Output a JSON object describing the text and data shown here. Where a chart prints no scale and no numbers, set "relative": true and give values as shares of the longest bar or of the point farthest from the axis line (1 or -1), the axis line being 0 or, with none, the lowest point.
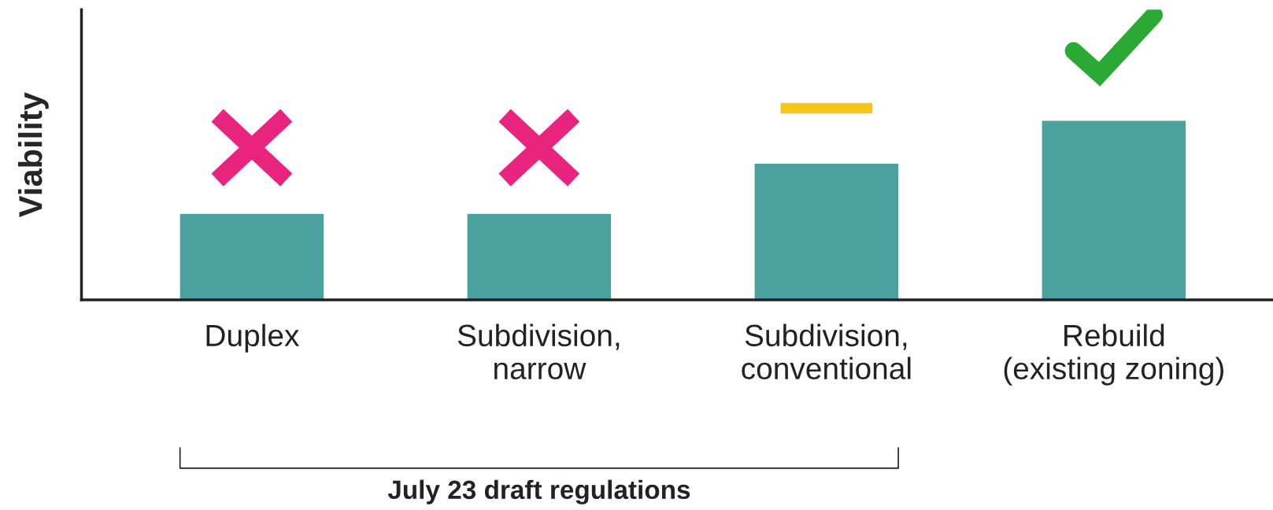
{
  "chart_data": {
    "type": "bar",
    "relative": true,
    "ylabel": "Viability",
    "categories": [
      "Duplex",
      "Subdivision,\nnarrow",
      "Subdivision,\nconventional",
      "Rebuild\n(existing zoning)"
    ],
    "values": [
      0.48,
      0.48,
      0.76,
      1
    ],
    "color": "#4aa19d",
    "grid": false,
    "legend": false,
    "annotations": [
      "July 23 draft regulations"
    ]
  }
}
